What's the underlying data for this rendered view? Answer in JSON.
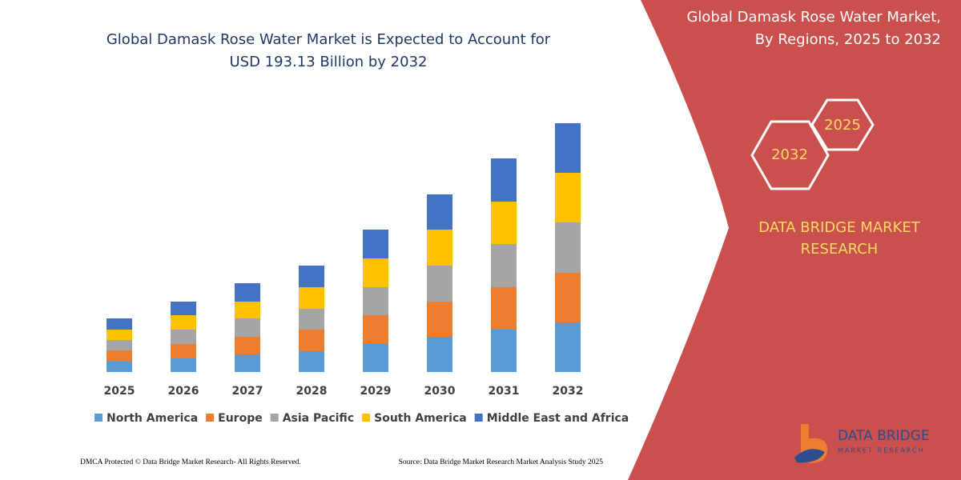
{
  "chart_data": {
    "type": "bar",
    "stacked": true,
    "title": [
      "Global Damask Rose Water Market is Expected to Account for",
      "USD 193.13 Billion by 2032"
    ],
    "categories": [
      "2025",
      "2026",
      "2027",
      "2028",
      "2029",
      "2030",
      "2031",
      "2032"
    ],
    "series": [
      {
        "name": "North America",
        "color": "#5b9bd5",
        "values": [
          13,
          17,
          22,
          26,
          35,
          44,
          53,
          62
        ]
      },
      {
        "name": "Europe",
        "color": "#ed7d31",
        "values": [
          14,
          18,
          22,
          27,
          36,
          44,
          53,
          62
        ]
      },
      {
        "name": "Asia Pacific",
        "color": "#a5a5a5",
        "values": [
          13,
          18,
          23,
          26,
          35,
          45,
          54,
          63
        ]
      },
      {
        "name": "South America",
        "color": "#ffc000",
        "values": [
          13,
          18,
          21,
          27,
          36,
          45,
          53,
          62
        ]
      },
      {
        "name": "Middle East and Africa",
        "color": "#4472c4",
        "values": [
          14,
          17,
          23,
          27,
          36,
          44,
          54,
          62
        ]
      }
    ]
  },
  "panel": {
    "title": [
      "Global Damask Rose Water Market,",
      "By Regions, 2025 to 2032"
    ],
    "hexagons": [
      "2025",
      "2032"
    ],
    "brand": [
      "DATA BRIDGE MARKET",
      "RESEARCH"
    ]
  },
  "logo": {
    "name": "DATA BRIDGE",
    "tagline": "MARKET RESEARCH"
  },
  "footer": {
    "left": "DMCA Protected © Data Bridge Market Research-  All Rights Reserved.",
    "right": "Source: Data Bridge Market Research  Market Analysis Study 2025"
  }
}
